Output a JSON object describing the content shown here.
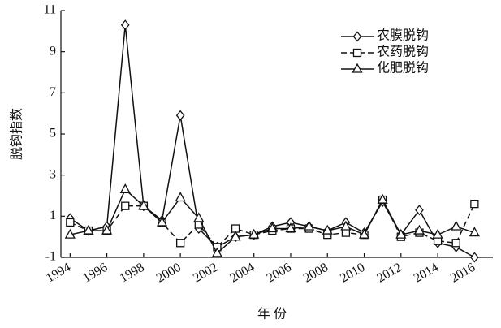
{
  "chart_data": {
    "type": "line",
    "x_label": "年 份",
    "y_label": "脱钩指数",
    "x": [
      1994,
      1995,
      1996,
      1997,
      1998,
      1999,
      2000,
      2001,
      2002,
      2003,
      2004,
      2005,
      2006,
      2007,
      2008,
      2009,
      2010,
      2011,
      2012,
      2013,
      2014,
      2015,
      2016
    ],
    "series": [
      {
        "name": "农膜脱钩",
        "color": "#111111",
        "marker": "diamond",
        "dashed": false,
        "values": [
          0.9,
          0.3,
          0.5,
          10.3,
          1.5,
          0.8,
          5.9,
          0.4,
          -0.5,
          0.0,
          0.1,
          0.5,
          0.7,
          0.5,
          0.3,
          0.7,
          0.2,
          1.7,
          0.1,
          1.3,
          -0.3,
          -0.5,
          -1.0
        ]
      },
      {
        "name": "农药脱钩",
        "color": "#111111",
        "marker": "square",
        "dashed": true,
        "values": [
          0.7,
          0.3,
          0.3,
          1.5,
          1.5,
          0.7,
          -0.3,
          0.6,
          -0.5,
          0.4,
          0.1,
          0.3,
          0.4,
          0.4,
          0.1,
          0.2,
          0.1,
          1.8,
          0.0,
          0.2,
          -0.2,
          -0.3,
          1.6
        ]
      },
      {
        "name": "化肥脱钩",
        "color": "#111111",
        "marker": "triangle",
        "dashed": false,
        "values": [
          0.1,
          0.3,
          0.3,
          2.3,
          1.5,
          0.7,
          1.9,
          0.9,
          -0.8,
          0.0,
          0.1,
          0.4,
          0.4,
          0.5,
          0.3,
          0.5,
          0.1,
          1.8,
          0.1,
          0.3,
          0.1,
          0.5,
          0.2
        ]
      }
    ],
    "xlim": [
      1993.5,
      2017
    ],
    "xticks": [
      1994,
      1996,
      1998,
      2000,
      2002,
      2004,
      2006,
      2008,
      2010,
      2012,
      2014,
      2016
    ],
    "ylim": [
      -1,
      11
    ],
    "yticks": [
      -1,
      1,
      3,
      5,
      7,
      9,
      11
    ],
    "legend": "top-right"
  }
}
